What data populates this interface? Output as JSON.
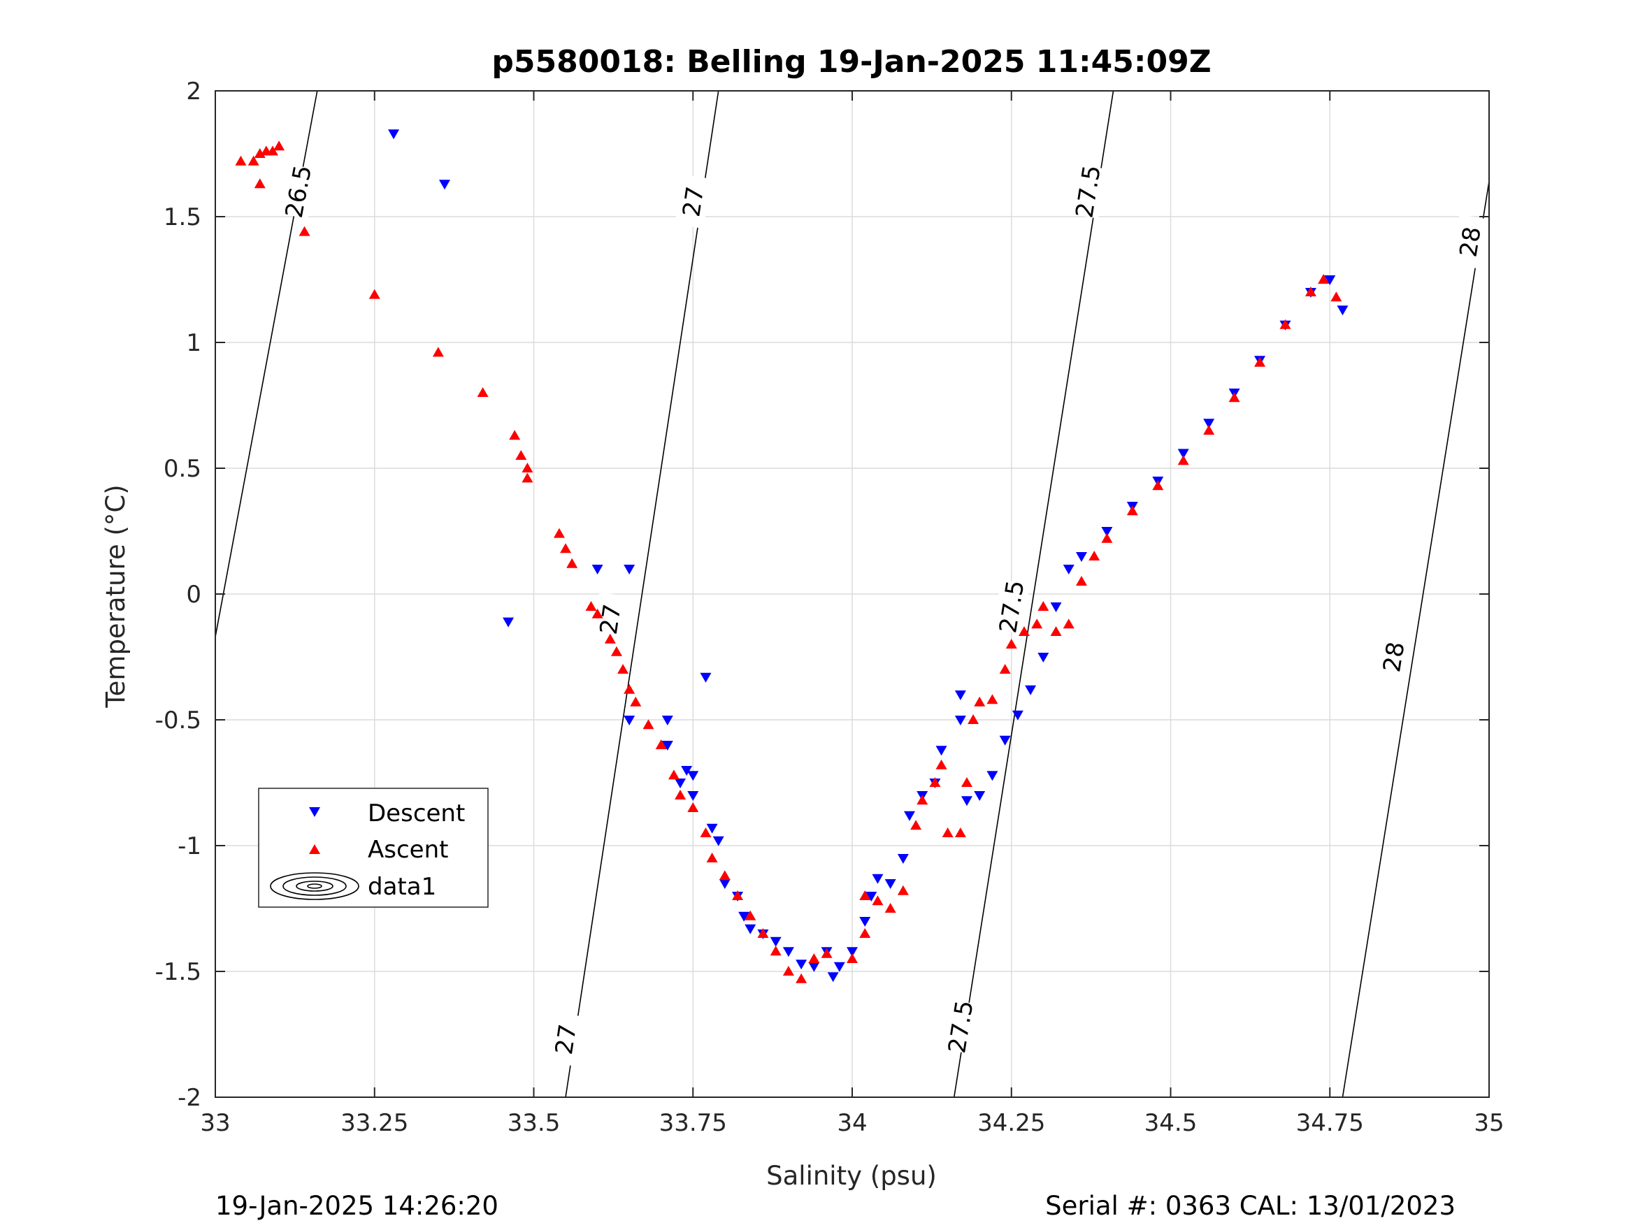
{
  "chart_data": {
    "type": "scatter",
    "title": "p5580018: Belling 19-Jan-2025 11:45:09Z",
    "xlabel": "Salinity (psu)",
    "ylabel": "Temperature (°C)",
    "xlim": [
      33,
      35
    ],
    "ylim": [
      -2,
      2
    ],
    "xticks": [
      33,
      33.25,
      33.5,
      33.75,
      34,
      34.25,
      34.5,
      34.75,
      35
    ],
    "xtick_labels": [
      "33",
      "33.25",
      "33.5",
      "33.75",
      "34",
      "34.25",
      "34.5",
      "34.75",
      "35"
    ],
    "yticks": [
      -2,
      -1.5,
      -1,
      -0.5,
      0,
      0.5,
      1,
      1.5,
      2
    ],
    "ytick_labels": [
      "-2",
      "-1.5",
      "-1",
      "-0.5",
      "0",
      "0.5",
      "1",
      "1.5",
      "2"
    ],
    "grid": true,
    "legend_position": "lower-left",
    "series": [
      {
        "name": "Descent",
        "marker": "triangle-down",
        "color": "#0000ff",
        "points": [
          [
            33.28,
            1.83
          ],
          [
            33.36,
            1.63
          ],
          [
            33.46,
            -0.11
          ],
          [
            33.6,
            0.1
          ],
          [
            33.65,
            0.1
          ],
          [
            33.65,
            -0.5
          ],
          [
            33.71,
            -0.5
          ],
          [
            33.71,
            -0.6
          ],
          [
            33.77,
            -0.33
          ],
          [
            33.73,
            -0.75
          ],
          [
            33.74,
            -0.7
          ],
          [
            33.75,
            -0.72
          ],
          [
            33.75,
            -0.8
          ],
          [
            33.78,
            -0.93
          ],
          [
            33.79,
            -0.98
          ],
          [
            33.8,
            -1.15
          ],
          [
            33.82,
            -1.2
          ],
          [
            33.83,
            -1.28
          ],
          [
            33.84,
            -1.33
          ],
          [
            33.86,
            -1.35
          ],
          [
            33.88,
            -1.38
          ],
          [
            33.9,
            -1.42
          ],
          [
            33.92,
            -1.47
          ],
          [
            33.94,
            -1.48
          ],
          [
            33.96,
            -1.42
          ],
          [
            33.97,
            -1.52
          ],
          [
            33.98,
            -1.48
          ],
          [
            34.0,
            -1.42
          ],
          [
            34.02,
            -1.3
          ],
          [
            34.03,
            -1.2
          ],
          [
            34.04,
            -1.13
          ],
          [
            34.06,
            -1.15
          ],
          [
            34.08,
            -1.05
          ],
          [
            34.09,
            -0.88
          ],
          [
            34.11,
            -0.8
          ],
          [
            34.13,
            -0.75
          ],
          [
            34.14,
            -0.62
          ],
          [
            34.17,
            -0.4
          ],
          [
            34.17,
            -0.5
          ],
          [
            34.18,
            -0.82
          ],
          [
            34.2,
            -0.8
          ],
          [
            34.22,
            -0.72
          ],
          [
            34.24,
            -0.58
          ],
          [
            34.26,
            -0.48
          ],
          [
            34.28,
            -0.38
          ],
          [
            34.3,
            -0.25
          ],
          [
            34.32,
            -0.05
          ],
          [
            34.34,
            0.1
          ],
          [
            34.36,
            0.15
          ],
          [
            34.4,
            0.25
          ],
          [
            34.44,
            0.35
          ],
          [
            34.48,
            0.45
          ],
          [
            34.52,
            0.56
          ],
          [
            34.56,
            0.68
          ],
          [
            34.6,
            0.8
          ],
          [
            34.64,
            0.93
          ],
          [
            34.68,
            1.07
          ],
          [
            34.72,
            1.2
          ],
          [
            34.75,
            1.25
          ],
          [
            34.77,
            1.13
          ]
        ]
      },
      {
        "name": "Ascent",
        "marker": "triangle-up",
        "color": "#ff0000",
        "points": [
          [
            33.04,
            1.72
          ],
          [
            33.06,
            1.72
          ],
          [
            33.07,
            1.75
          ],
          [
            33.08,
            1.76
          ],
          [
            33.09,
            1.76
          ],
          [
            33.1,
            1.78
          ],
          [
            33.07,
            1.63
          ],
          [
            33.14,
            1.44
          ],
          [
            33.25,
            1.19
          ],
          [
            33.35,
            0.96
          ],
          [
            33.42,
            0.8
          ],
          [
            33.47,
            0.63
          ],
          [
            33.48,
            0.55
          ],
          [
            33.49,
            0.5
          ],
          [
            33.49,
            0.46
          ],
          [
            33.54,
            0.24
          ],
          [
            33.55,
            0.18
          ],
          [
            33.56,
            0.12
          ],
          [
            33.59,
            -0.05
          ],
          [
            33.6,
            -0.08
          ],
          [
            33.62,
            -0.18
          ],
          [
            33.63,
            -0.23
          ],
          [
            33.64,
            -0.3
          ],
          [
            33.65,
            -0.38
          ],
          [
            33.66,
            -0.43
          ],
          [
            33.68,
            -0.52
          ],
          [
            33.7,
            -0.6
          ],
          [
            33.72,
            -0.72
          ],
          [
            33.73,
            -0.8
          ],
          [
            33.75,
            -0.85
          ],
          [
            33.77,
            -0.95
          ],
          [
            33.78,
            -1.05
          ],
          [
            33.8,
            -1.12
          ],
          [
            33.82,
            -1.2
          ],
          [
            33.84,
            -1.28
          ],
          [
            33.86,
            -1.35
          ],
          [
            33.88,
            -1.42
          ],
          [
            33.9,
            -1.5
          ],
          [
            33.92,
            -1.53
          ],
          [
            33.94,
            -1.45
          ],
          [
            33.96,
            -1.43
          ],
          [
            34.0,
            -1.45
          ],
          [
            34.02,
            -1.35
          ],
          [
            34.02,
            -1.2
          ],
          [
            34.04,
            -1.22
          ],
          [
            34.06,
            -1.25
          ],
          [
            34.08,
            -1.18
          ],
          [
            34.1,
            -0.92
          ],
          [
            34.11,
            -0.82
          ],
          [
            34.13,
            -0.75
          ],
          [
            34.14,
            -0.68
          ],
          [
            34.15,
            -0.95
          ],
          [
            34.17,
            -0.95
          ],
          [
            34.18,
            -0.75
          ],
          [
            34.19,
            -0.5
          ],
          [
            34.2,
            -0.43
          ],
          [
            34.22,
            -0.42
          ],
          [
            34.24,
            -0.3
          ],
          [
            34.25,
            -0.2
          ],
          [
            34.27,
            -0.15
          ],
          [
            34.29,
            -0.12
          ],
          [
            34.3,
            -0.05
          ],
          [
            34.32,
            -0.15
          ],
          [
            34.34,
            -0.12
          ],
          [
            34.36,
            0.05
          ],
          [
            34.38,
            0.15
          ],
          [
            34.4,
            0.22
          ],
          [
            34.44,
            0.33
          ],
          [
            34.48,
            0.43
          ],
          [
            34.52,
            0.53
          ],
          [
            34.56,
            0.65
          ],
          [
            34.6,
            0.78
          ],
          [
            34.64,
            0.92
          ],
          [
            34.68,
            1.07
          ],
          [
            34.72,
            1.2
          ],
          [
            34.74,
            1.25
          ],
          [
            34.76,
            1.18
          ]
        ]
      }
    ],
    "contours": {
      "legend_name": "data1",
      "lines": [
        {
          "level": "26.5",
          "points": [
            [
              33.0,
              -0.17
            ],
            [
              33.16,
              2.0
            ]
          ],
          "label_at": [
            [
              33.13,
              1.6
            ]
          ]
        },
        {
          "level": "27",
          "points": [
            [
              33.55,
              -2.0
            ],
            [
              33.79,
              2.0
            ]
          ],
          "label_at": [
            [
              33.75,
              1.56
            ],
            [
              33.62,
              -0.1
            ],
            [
              33.55,
              -1.77
            ]
          ]
        },
        {
          "level": "27.5",
          "points": [
            [
              34.16,
              -2.0
            ],
            [
              34.41,
              2.0
            ]
          ],
          "label_at": [
            [
              34.37,
              1.6
            ],
            [
              34.25,
              -0.05
            ],
            [
              34.17,
              -1.72
            ]
          ]
        },
        {
          "level": "28",
          "points": [
            [
              34.77,
              -2.0
            ],
            [
              35.0,
              1.64
            ]
          ],
          "label_at": [
            [
              34.97,
              1.4
            ],
            [
              34.85,
              -0.25
            ]
          ]
        }
      ]
    }
  },
  "footer": {
    "left": "19-Jan-2025 14:26:20",
    "right": "Serial #: 0363  CAL: 13/01/2023"
  }
}
